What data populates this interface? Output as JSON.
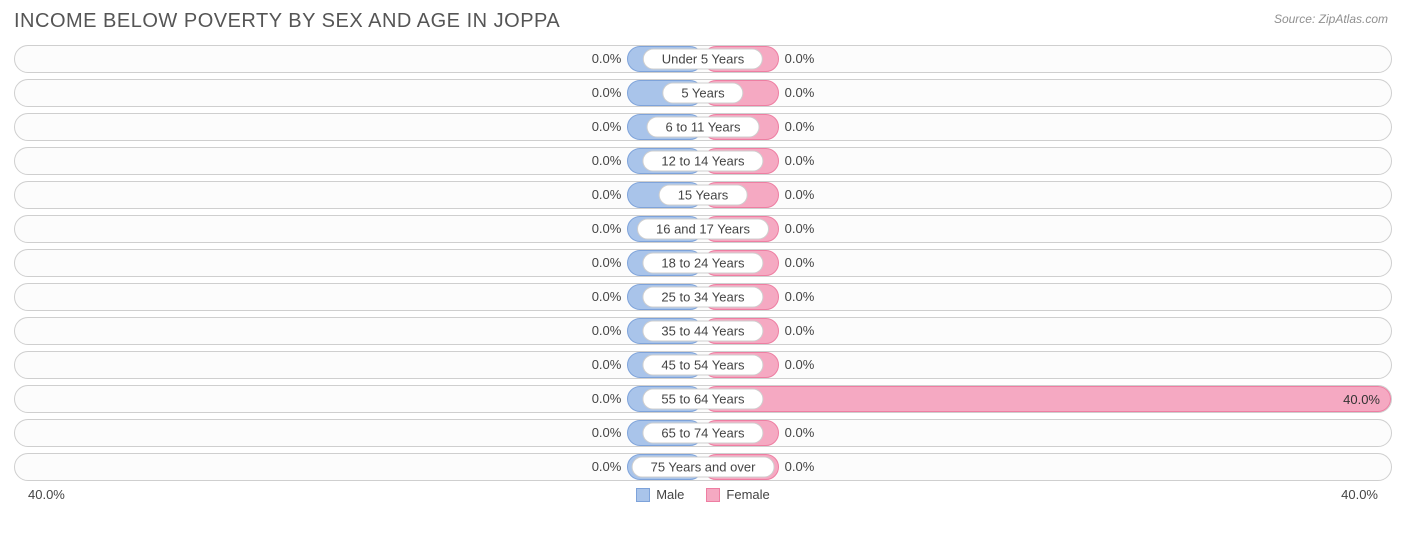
{
  "title": "INCOME BELOW POVERTY BY SEX AND AGE IN JOPPA",
  "source": "Source: ZipAtlas.com",
  "chart": {
    "type": "diverging-bar",
    "axis_max": 40.0,
    "axis_label_left": "40.0%",
    "axis_label_right": "40.0%",
    "min_bar_pct": 11,
    "colors": {
      "male_fill": "#a9c4ea",
      "male_border": "#7ea3da",
      "female_fill": "#f5a9c2",
      "female_border": "#ee7ea2",
      "row_border": "#cfcfcf",
      "row_bg": "#fcfcfc",
      "text": "#444444",
      "title_text": "#555555",
      "source_text": "#909090",
      "background": "#ffffff"
    },
    "legend": [
      {
        "label": "Male",
        "fill": "#a9c4ea",
        "border": "#7ea3da"
      },
      {
        "label": "Female",
        "fill": "#f5a9c2",
        "border": "#ee7ea2"
      }
    ],
    "rows": [
      {
        "category": "Under 5 Years",
        "male": 0.0,
        "female": 0.0,
        "male_label": "0.0%",
        "female_label": "0.0%"
      },
      {
        "category": "5 Years",
        "male": 0.0,
        "female": 0.0,
        "male_label": "0.0%",
        "female_label": "0.0%"
      },
      {
        "category": "6 to 11 Years",
        "male": 0.0,
        "female": 0.0,
        "male_label": "0.0%",
        "female_label": "0.0%"
      },
      {
        "category": "12 to 14 Years",
        "male": 0.0,
        "female": 0.0,
        "male_label": "0.0%",
        "female_label": "0.0%"
      },
      {
        "category": "15 Years",
        "male": 0.0,
        "female": 0.0,
        "male_label": "0.0%",
        "female_label": "0.0%"
      },
      {
        "category": "16 and 17 Years",
        "male": 0.0,
        "female": 0.0,
        "male_label": "0.0%",
        "female_label": "0.0%"
      },
      {
        "category": "18 to 24 Years",
        "male": 0.0,
        "female": 0.0,
        "male_label": "0.0%",
        "female_label": "0.0%"
      },
      {
        "category": "25 to 34 Years",
        "male": 0.0,
        "female": 0.0,
        "male_label": "0.0%",
        "female_label": "0.0%"
      },
      {
        "category": "35 to 44 Years",
        "male": 0.0,
        "female": 0.0,
        "male_label": "0.0%",
        "female_label": "0.0%"
      },
      {
        "category": "45 to 54 Years",
        "male": 0.0,
        "female": 0.0,
        "male_label": "0.0%",
        "female_label": "0.0%"
      },
      {
        "category": "55 to 64 Years",
        "male": 0.0,
        "female": 40.0,
        "male_label": "0.0%",
        "female_label": "40.0%"
      },
      {
        "category": "65 to 74 Years",
        "male": 0.0,
        "female": 0.0,
        "male_label": "0.0%",
        "female_label": "0.0%"
      },
      {
        "category": "75 Years and over",
        "male": 0.0,
        "female": 0.0,
        "male_label": "0.0%",
        "female_label": "0.0%"
      }
    ]
  }
}
